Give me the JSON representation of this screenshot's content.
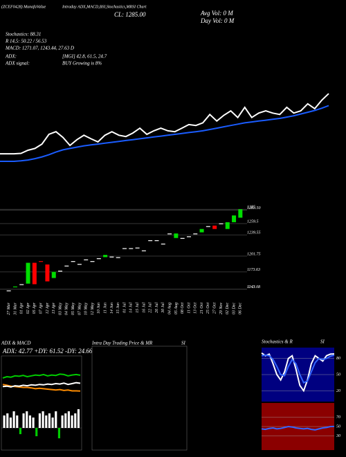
{
  "header": {
    "title": "(ZCEF0428) MunafaValue",
    "subtitle": "Intraday ADX,MACD,BSI,Stochastics,MRSI Chart",
    "close": "CL: 1285.00",
    "avg_vol": "Avg Vol: 0  M",
    "day_vol": "Day Vol: 0  M",
    "stochastics": "Stochastics: 88.31",
    "rsi": "R 14,5: 50.22 / 56.53",
    "macd": "MACD: 1271.07, 1243.44, 27.63 D",
    "adx": "ADX:",
    "mgi": "[MGI] 42.8, 61.5, 24.7",
    "adx_signal": "ADX  signal:",
    "buy": "BUY Growing is 8%"
  },
  "chart_data": [
    {
      "type": "line",
      "ylim": [
        1120,
        1300
      ],
      "series": [
        {
          "color": "#ffffff",
          "values": [
            1148,
            1148,
            1148,
            1149,
            1156,
            1160,
            1170,
            1192,
            1198,
            1185,
            1167,
            1180,
            1190,
            1182,
            1175,
            1190,
            1198,
            1190,
            1187,
            1195,
            1206,
            1192,
            1200,
            1206,
            1200,
            1198,
            1206,
            1214,
            1212,
            1218,
            1237,
            1222,
            1235,
            1245,
            1230,
            1253,
            1230,
            1240,
            1245,
            1240,
            1237,
            1253,
            1240,
            1245,
            1261,
            1250,
            1269,
            1284
          ]
        },
        {
          "color": "#1a5cff",
          "values": [
            1131,
            1131,
            1131,
            1132,
            1134,
            1137,
            1141,
            1146,
            1152,
            1157,
            1160,
            1163,
            1166,
            1168,
            1170,
            1172,
            1174,
            1176,
            1178,
            1180,
            1182,
            1184,
            1186,
            1188,
            1190,
            1192,
            1194,
            1196,
            1198,
            1200,
            1203,
            1206,
            1209,
            1212,
            1215,
            1218,
            1220,
            1222,
            1224,
            1226,
            1228,
            1231,
            1234,
            1238,
            1242,
            1246,
            1251,
            1257
          ]
        }
      ]
    },
    {
      "type": "candlestick",
      "ylim": [
        1128,
        1300
      ],
      "yticks": [
        1285,
        {
          "value": 1283.5,
          "label": "1283.50"
        },
        1259.5,
        1239.55,
        1201.75,
        1173.63,
        1143,
        1143.08
      ],
      "up_color": "#00dd00",
      "down_color": "#ff0000",
      "flat_color": "#ffffff",
      "categories": [
        "27 Mar",
        "31 Mar",
        "01 Apr",
        "02 Apr",
        "05 Apr",
        "07 Apr",
        "12 Apr",
        "13 Apr",
        "03 May",
        "04 May",
        "05 May",
        "07 May",
        "10 May",
        "12 May",
        "10 Jun",
        "11 Jun",
        "14 Jun",
        "15 Jun",
        "01 Jul",
        "14 Jul",
        "15 Jul",
        "16 Jul",
        "22 Jul",
        "26 Jul",
        "30 Jul",
        "04 Aug",
        "05 Aug",
        "08 Oct",
        "11 Oct",
        "13 Oct",
        "21 Oct",
        "25 Oct",
        "27 Oct",
        "29 Nov",
        "02 Dec",
        "03 Dec",
        "06 Dec"
      ],
      "open": [
        1141,
        1147,
        1152,
        1153,
        1190,
        1193,
        1187,
        1163,
        1176,
        1185,
        1193,
        1188,
        1196,
        1193,
        1198,
        1200,
        1201,
        1200,
        1216,
        1216,
        1217,
        1212,
        1230,
        1230,
        1224,
        1242,
        1234,
        1234,
        1237,
        1242,
        1244,
        1255,
        1256,
        1260,
        1250,
        1262,
        1270
      ],
      "close": [
        1141,
        1148,
        1152,
        1190,
        1152,
        1192,
        1157,
        1174,
        1176,
        1185,
        1193,
        1188,
        1196,
        1193,
        1198,
        1204,
        1201,
        1200,
        1216,
        1216,
        1217,
        1212,
        1230,
        1230,
        1224,
        1242,
        1242,
        1234,
        1237,
        1242,
        1250,
        1255,
        1250,
        1260,
        1262,
        1274,
        1285
      ]
    },
    {
      "type": "indicator",
      "title": "ADX  & MACD",
      "label": "ADX: 42.77 +DY: 61.52 -DY: 24.66",
      "ylim": [
        0,
        100
      ],
      "series": [
        {
          "color": "#00cc00",
          "values": [
            55,
            58,
            57,
            60,
            59,
            61,
            58,
            60,
            62,
            61,
            63,
            60,
            62,
            61,
            64,
            63,
            60,
            62,
            63,
            61.52
          ]
        },
        {
          "color": "#ff8c00",
          "values": [
            40,
            38,
            36,
            35,
            34,
            33,
            33,
            32,
            30,
            31,
            30,
            29,
            28,
            27,
            28,
            26,
            27,
            25,
            25,
            24.66
          ]
        },
        {
          "color": "#ffffff",
          "values": [
            35,
            36,
            34,
            37,
            36,
            38,
            37,
            39,
            38,
            40,
            39,
            41,
            40,
            42,
            41,
            43,
            40,
            42,
            44,
            42.77
          ]
        }
      ],
      "bars": {
        "ylim": [
          -10,
          10
        ],
        "up_color": "#ffffff",
        "down_color": "#00cc00",
        "values": [
          6,
          7,
          5,
          8,
          6,
          -3,
          7,
          8,
          6,
          5,
          -4,
          7,
          8,
          6,
          7,
          5,
          8,
          -5,
          6,
          7,
          8,
          6,
          7,
          9
        ]
      }
    },
    {
      "type": "panel",
      "title": "Intra Day Trading Price  & MR",
      "title2": "SI"
    },
    {
      "type": "oscillator",
      "title": "Stochastics & R",
      "title2": "SI",
      "ylim": [
        0,
        100
      ],
      "yticks": [
        80,
        50,
        20
      ],
      "background": "#000080",
      "series": [
        {
          "color": "#ffffff",
          "values": [
            90,
            85,
            88,
            70,
            50,
            40,
            55,
            80,
            85,
            60,
            30,
            20,
            40,
            70,
            85,
            80,
            75,
            85,
            88,
            88.31
          ]
        },
        {
          "color": "#3366ff",
          "values": [
            85,
            86,
            85,
            78,
            65,
            50,
            48,
            65,
            78,
            70,
            50,
            35,
            38,
            55,
            72,
            80,
            78,
            80,
            84,
            86
          ]
        }
      ]
    },
    {
      "type": "oscillator",
      "ylim": [
        0,
        100
      ],
      "yticks": [
        70,
        50,
        30
      ],
      "background": "#8b0000",
      "series": [
        {
          "color": "#3366ff",
          "values": [
            45,
            44,
            46,
            47,
            45,
            46,
            48,
            50,
            49,
            47,
            46,
            45,
            46,
            44,
            43,
            45,
            47,
            48,
            50,
            50.22
          ]
        }
      ]
    }
  ]
}
